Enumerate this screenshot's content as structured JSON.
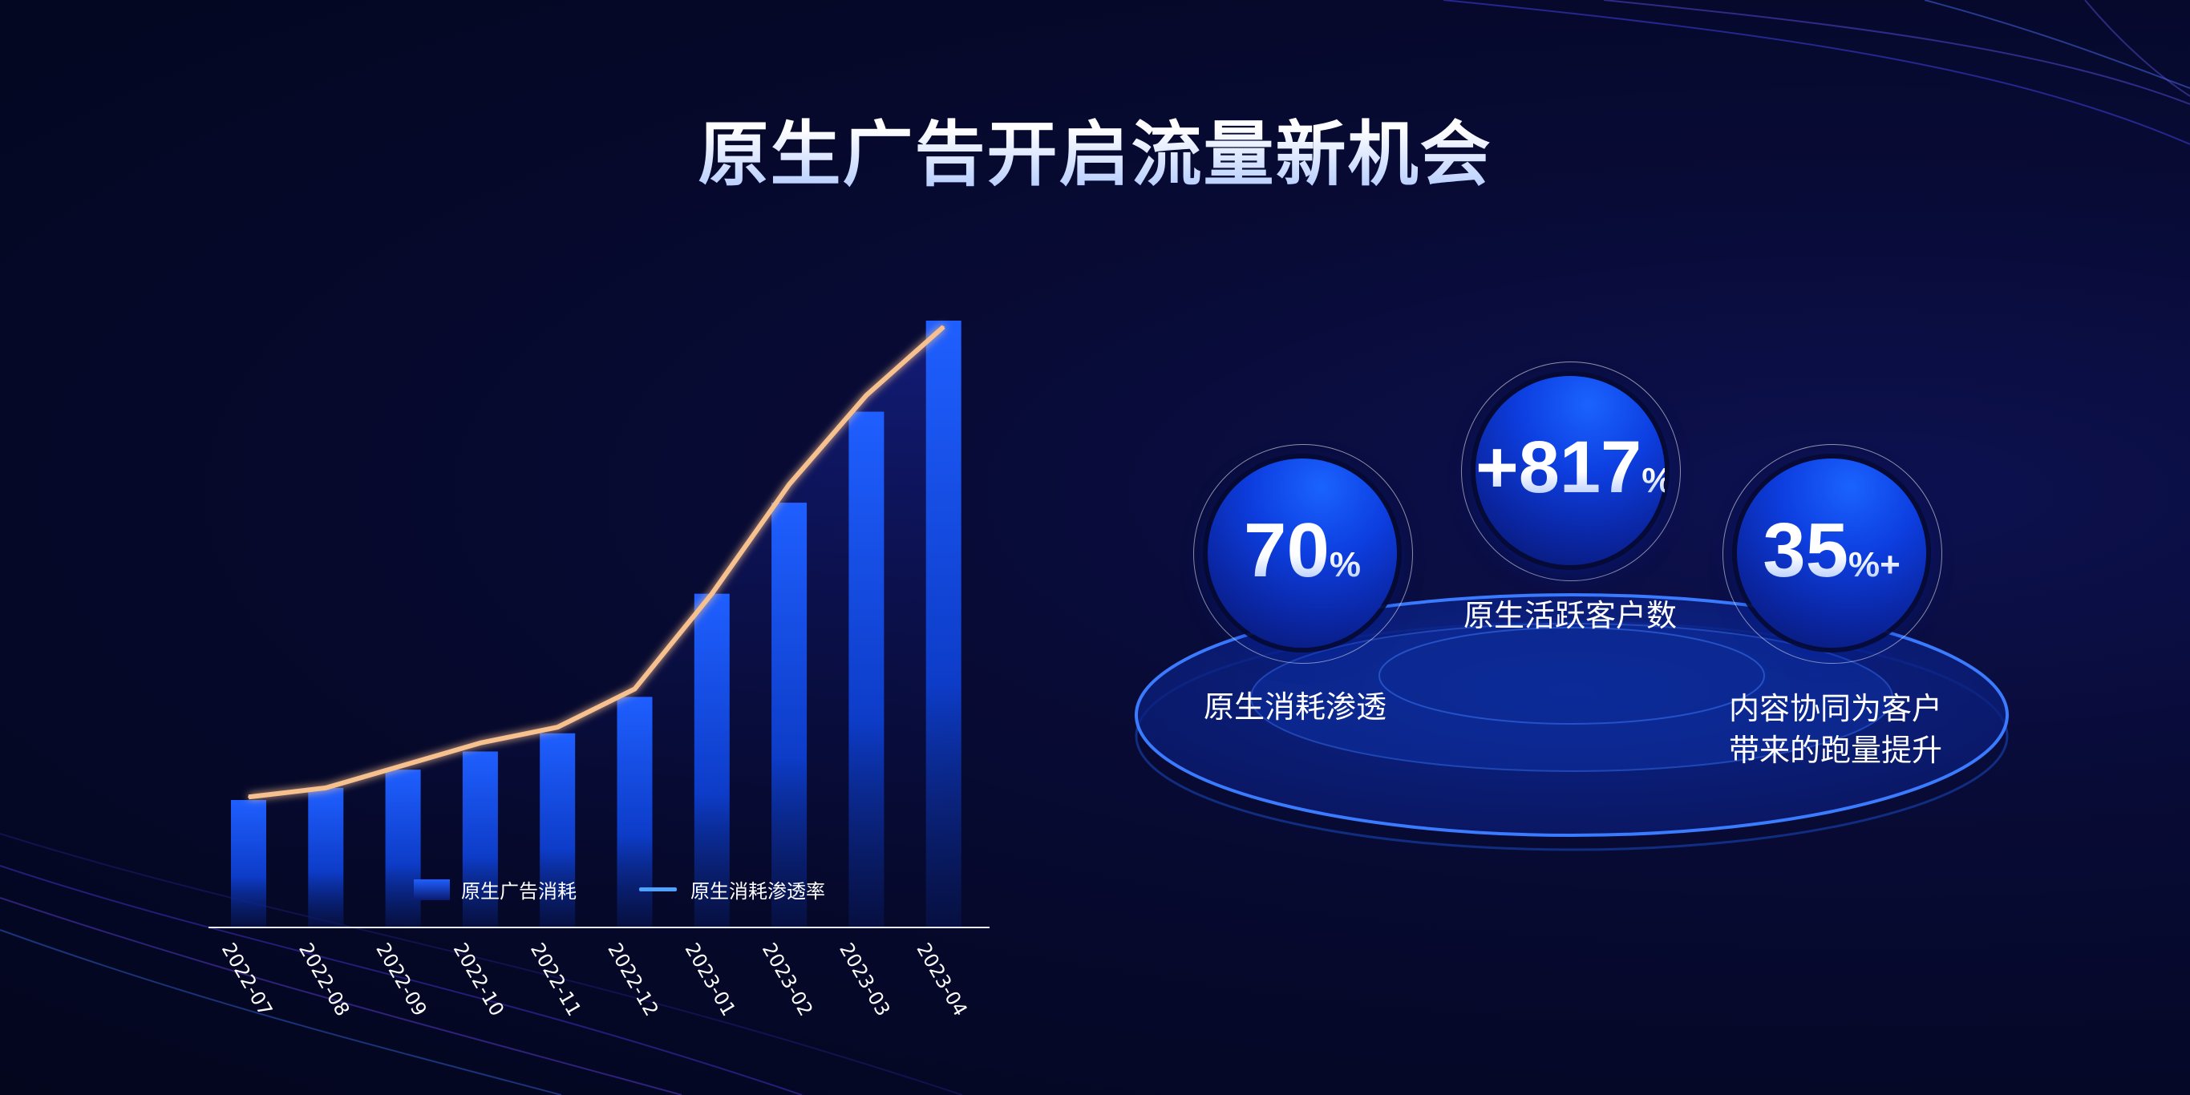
{
  "title": "原生广告开启流量新机会",
  "colors": {
    "background": "#050827",
    "bar": "#1f5fff",
    "line": "#f7c08f",
    "legend_line": "#4da3ff",
    "accent": "#0d3ee0"
  },
  "chart_data": {
    "type": "bar+line",
    "categories": [
      "2022-07",
      "2022-08",
      "2022-09",
      "2022-10",
      "2022-11",
      "2022-12",
      "2023-01",
      "2023-02",
      "2023-03",
      "2023-04"
    ],
    "series": [
      {
        "name": "原生广告消耗",
        "type": "bar",
        "values": [
          21,
          23,
          26,
          29,
          32,
          38,
          55,
          70,
          85,
          100
        ]
      },
      {
        "name": "原生消耗渗透率",
        "type": "line",
        "values": [
          21.5,
          23,
          26.7,
          30.4,
          33,
          39.3,
          55,
          73,
          87.7,
          99
        ]
      }
    ],
    "ylim": [
      0,
      100
    ],
    "grid": false,
    "legend": "bottom",
    "y_axis_shown": false
  },
  "legend": {
    "bar_label": "原生广告消耗",
    "line_label": "原生消耗渗透率"
  },
  "stats": [
    {
      "value": "70",
      "unit": "%",
      "label": "原生消耗渗透"
    },
    {
      "value": "+817",
      "unit": "%",
      "label": "原生活跃客户数"
    },
    {
      "value": "35",
      "unit": "%+",
      "label_lines": [
        "内容协同为客户",
        "带来的跑量提升"
      ]
    }
  ]
}
